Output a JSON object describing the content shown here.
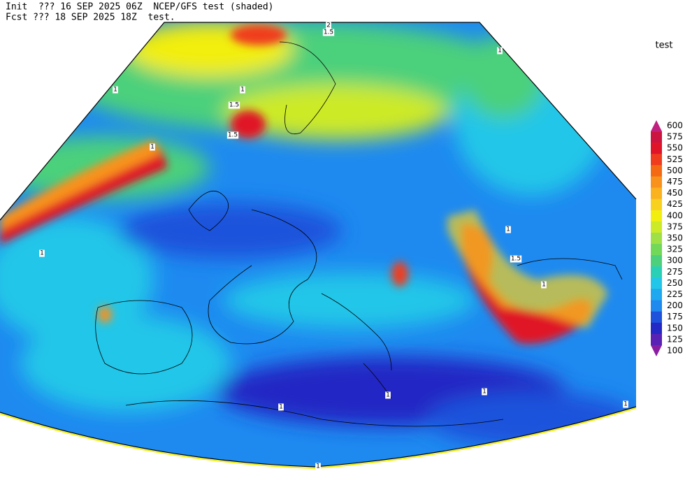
{
  "header": {
    "line1": "Init  ??? 16 SEP 2025 06Z  NCEP/GFS test (shaded)",
    "line2": "Fcst ??? 18 SEP 2025 18Z  test."
  },
  "colorbar": {
    "title": "test",
    "levels": [
      600,
      575,
      550,
      525,
      500,
      475,
      450,
      425,
      400,
      375,
      350,
      325,
      300,
      275,
      250,
      225,
      200,
      175,
      150,
      125,
      100
    ],
    "colors": [
      "#c0207e",
      "#cc1440",
      "#e01428",
      "#f03c1e",
      "#f46a14",
      "#f8921c",
      "#fab21e",
      "#f8d01e",
      "#f2ee10",
      "#cdea28",
      "#9ee046",
      "#72d858",
      "#4cd07c",
      "#2ad0b6",
      "#22c6e8",
      "#1ea8f0",
      "#1e8af0",
      "#1e52dc",
      "#2428c4",
      "#5a22b4",
      "#8a1ea2"
    ]
  },
  "contour_labels": [
    "2",
    "1.5",
    "1",
    "1",
    "1",
    "1",
    "1.5",
    "1",
    "1",
    "1.5",
    "1",
    "1",
    "1",
    "1",
    "1",
    "1",
    "1.5"
  ]
}
